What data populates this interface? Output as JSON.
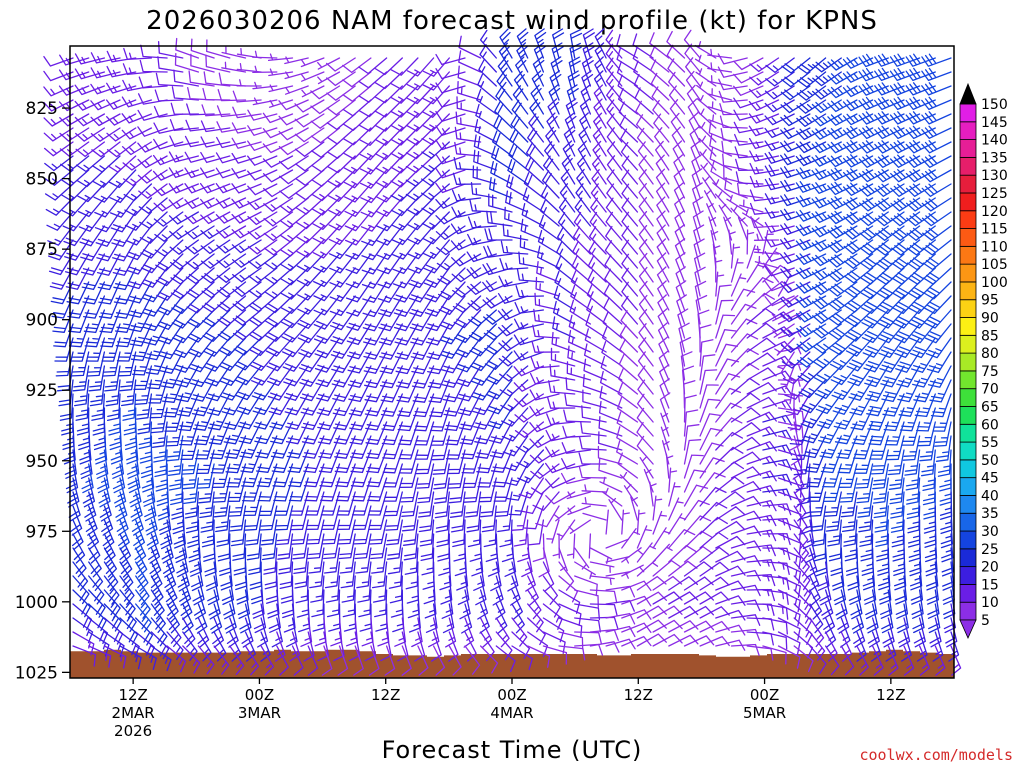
{
  "chart_data": {
    "type": "wind_barb_time_height",
    "title": "2026030206 NAM forecast wind profile (kt) for KPNS",
    "xlabel": "Forecast Time (UTC)",
    "ylabel": "",
    "units": "kt",
    "y_axis": {
      "reversed": true,
      "ylim": [
        1027,
        803
      ],
      "ticks": [
        "825",
        "850",
        "875",
        "900",
        "925",
        "950",
        "975",
        "1000",
        "1025"
      ]
    },
    "x_axis": {
      "range_hours": [
        0,
        84
      ],
      "ticks": [
        {
          "hour": 6,
          "lines": [
            "12Z",
            "2MAR",
            "2026"
          ]
        },
        {
          "hour": 18,
          "lines": [
            "00Z",
            "3MAR"
          ]
        },
        {
          "hour": 30,
          "lines": [
            "12Z"
          ]
        },
        {
          "hour": 42,
          "lines": [
            "00Z",
            "4MAR"
          ]
        },
        {
          "hour": 54,
          "lines": [
            "12Z"
          ]
        },
        {
          "hour": 66,
          "lines": [
            "00Z",
            "5MAR"
          ]
        },
        {
          "hour": 78,
          "lines": [
            "12Z"
          ]
        }
      ]
    },
    "colorbar": {
      "levels": [
        "5",
        "10",
        "15",
        "20",
        "25",
        "30",
        "35",
        "40",
        "45",
        "50",
        "55",
        "60",
        "65",
        "70",
        "75",
        "80",
        "85",
        "90",
        "95",
        "100",
        "105",
        "110",
        "115",
        "120",
        "125",
        "130",
        "135",
        "140",
        "145",
        "150"
      ],
      "colors": [
        "#8c2ee6",
        "#6a1ee6",
        "#3c1ee0",
        "#1a2ad8",
        "#1444e0",
        "#1866e8",
        "#1e88f0",
        "#1aa8f0",
        "#10c8e0",
        "#10dcc4",
        "#10e29a",
        "#1ee05a",
        "#3ee03a",
        "#72e62e",
        "#a8ea26",
        "#dcf01e",
        "#fcf014",
        "#fcd214",
        "#fcb414",
        "#fc9614",
        "#fc7814",
        "#fc5a14",
        "#fc3c14",
        "#f01e1e",
        "#e61e3c",
        "#e61e6a",
        "#e61e96",
        "#e61ec0",
        "#e11ee6",
        "#000000"
      ]
    },
    "profile_grid": {
      "times_hours": [
        0,
        6,
        12,
        18,
        24,
        30,
        36,
        42,
        48,
        54,
        60,
        66,
        72,
        78,
        84
      ],
      "pressure_levels_hPa": [
        810,
        850,
        900,
        950,
        1000,
        1020
      ],
      "wind_dir_deg": [
        [
          250,
          260,
          290,
          280,
          250,
          230,
          220,
          330,
          350,
          300,
          320,
          240,
          230,
          250,
          250
        ],
        [
          230,
          220,
          250,
          250,
          230,
          220,
          230,
          300,
          330,
          320,
          340,
          270,
          250,
          240,
          240
        ],
        [
          200,
          200,
          220,
          230,
          220,
          210,
          210,
          230,
          300,
          320,
          350,
          60,
          240,
          220,
          220
        ],
        [
          170,
          170,
          190,
          200,
          200,
          200,
          190,
          200,
          250,
          300,
          30,
          80,
          200,
          190,
          180
        ],
        [
          130,
          140,
          160,
          170,
          180,
          180,
          170,
          150,
          100,
          60,
          60,
          100,
          160,
          170,
          170
        ],
        [
          100,
          110,
          130,
          140,
          150,
          150,
          140,
          110,
          80,
          60,
          70,
          110,
          140,
          150,
          150
        ]
      ],
      "wind_speed_kt": [
        [
          12,
          14,
          10,
          6,
          6,
          10,
          14,
          24,
          22,
          12,
          8,
          10,
          24,
          28,
          30
        ],
        [
          16,
          16,
          14,
          12,
          12,
          14,
          16,
          22,
          18,
          10,
          8,
          12,
          26,
          30,
          30
        ],
        [
          22,
          24,
          22,
          20,
          18,
          18,
          20,
          22,
          16,
          10,
          8,
          14,
          28,
          30,
          28
        ],
        [
          24,
          28,
          26,
          24,
          20,
          20,
          20,
          20,
          14,
          10,
          10,
          16,
          26,
          28,
          26
        ],
        [
          20,
          26,
          22,
          20,
          16,
          16,
          16,
          16,
          12,
          10,
          12,
          14,
          20,
          22,
          20
        ],
        [
          10,
          14,
          12,
          12,
          8,
          8,
          8,
          10,
          8,
          8,
          8,
          8,
          10,
          12,
          12
        ]
      ]
    },
    "terrain": {
      "color": "#a0522d",
      "surface_pressure_hPa": [
        1017.5,
        1017.5,
        1017.0,
        1017.5,
        1018.0,
        1018.0,
        1018.0,
        1018.0,
        1018.0,
        1018.0,
        1017.5,
        1017.5,
        1017.0,
        1017.5,
        1017.5,
        1017.0,
        1017.0,
        1017.5,
        1018.5,
        1019.0,
        1019.0,
        1019.5,
        1019.0,
        1018.5,
        1018.5,
        1018.5,
        1018.5,
        1018.5,
        1018.5,
        1018.5,
        1018.5,
        1019.0,
        1019.0,
        1018.5,
        1018.5,
        1018.5,
        1018.5,
        1019.0,
        1019.5,
        1019.5,
        1019.0,
        1018.5,
        1018.5,
        1018.5,
        1018.5,
        1018.5,
        1018.0,
        1017.5,
        1017.0,
        1017.5,
        1018.0,
        1018.5
      ]
    }
  },
  "credit": "coolwx.com/models",
  "colors": {
    "background": "#ffffff",
    "axis": "#000000",
    "credit": "#d42a2a"
  }
}
